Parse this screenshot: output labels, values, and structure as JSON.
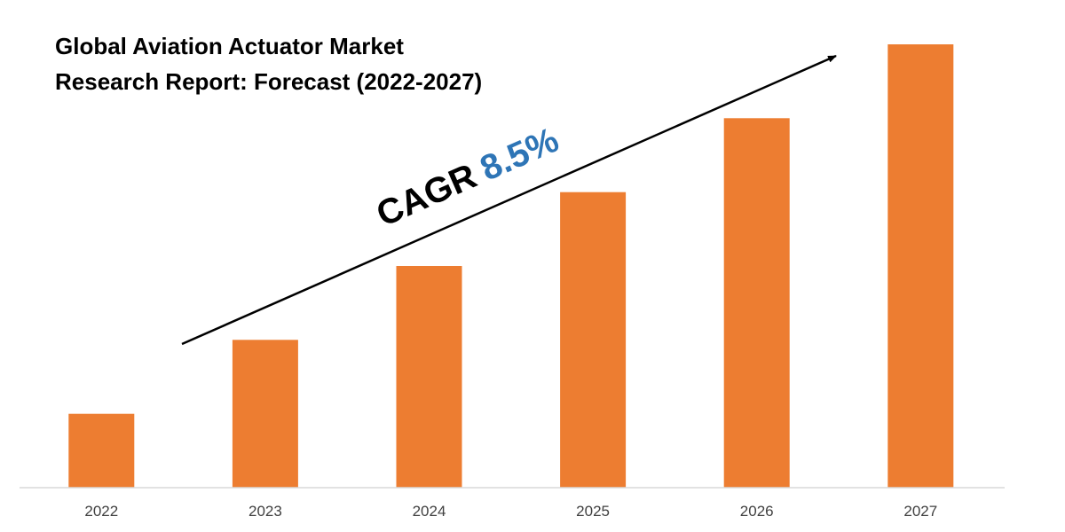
{
  "chart_data": {
    "type": "bar",
    "title": "Global Aviation Actuator Market Research Report: Forecast (2022-2027)",
    "title_lines": [
      "Global Aviation Actuator Market",
      "Research Report: Forecast (2022-2027)"
    ],
    "categories": [
      "2022",
      "2023",
      "2024",
      "2025",
      "2026",
      "2027"
    ],
    "values": [
      1,
      2,
      3,
      4,
      5,
      6
    ],
    "ylim": [
      0,
      6.3
    ],
    "bar_color": "#ED7D31",
    "grid": false,
    "legend": "none",
    "annotation": {
      "label": "CAGR",
      "value": "8.5%",
      "label_color": "#000000",
      "value_color": "#2E75B6"
    }
  }
}
